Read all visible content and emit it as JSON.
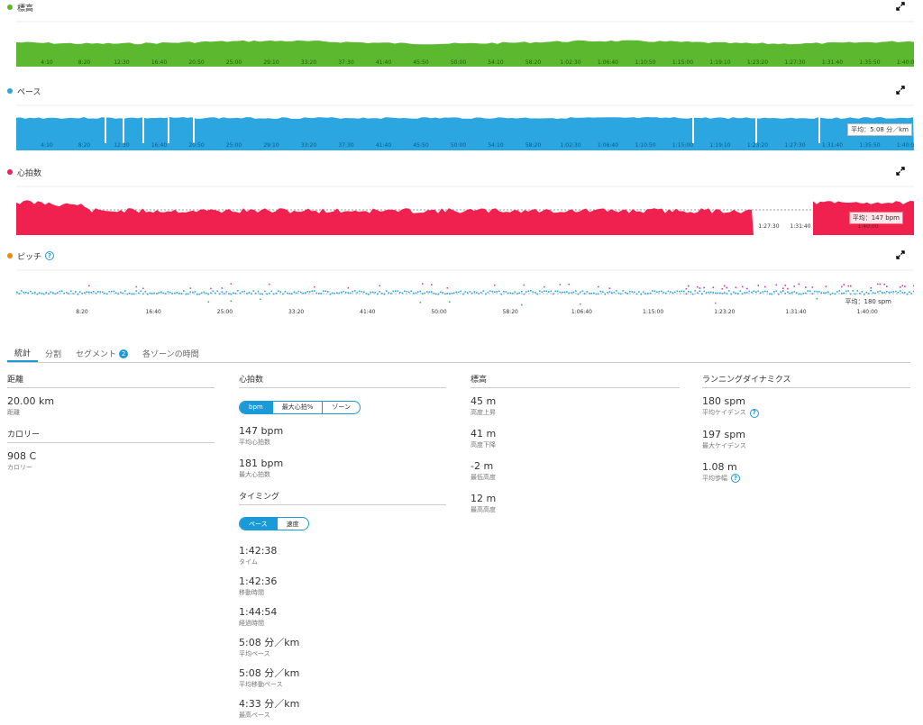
{
  "elevation": {
    "title": "標高",
    "color": "#5cb82e"
  },
  "pace": {
    "title": "ペース",
    "color": "#2ca6e0",
    "avg_label": "平均：5:08 分／km"
  },
  "heartrate": {
    "title": "心拍数",
    "color": "#f0214f",
    "avg_label": "平均：147 bpm"
  },
  "cadence": {
    "title": "ピッチ",
    "color": "#f08a00",
    "avg_label": "平均：180 spm"
  },
  "x_ticks": [
    "4:10",
    "8:20",
    "12:30",
    "16:40",
    "20:50",
    "25:00",
    "29:10",
    "33:20",
    "37:30",
    "41:40",
    "45:50",
    "50:00",
    "54:10",
    "58:20",
    "1:02:30",
    "1:06:40",
    "1:10:50",
    "1:15:00",
    "1:19:10",
    "1:23:20",
    "1:27:30",
    "1:31:40",
    "1:35:50",
    "1:40:00"
  ],
  "hr_visible_ticks": [
    "1:27:30",
    "1:31:40",
    "1:40:00"
  ],
  "cadence_ticks": [
    "8:20",
    "16:40",
    "25:00",
    "33:20",
    "41:40",
    "50:00",
    "58:20",
    "1:06:40",
    "1:15:00",
    "1:23:20",
    "1:31:40",
    "1:40:00"
  ],
  "tabs": [
    {
      "label": "統計",
      "active": true
    },
    {
      "label": "分割"
    },
    {
      "label": "セグメント",
      "badge": "2"
    },
    {
      "label": "各ゾーンの時間"
    }
  ],
  "col1": {
    "distance": {
      "title": "距離",
      "value": "20.00 km",
      "label": "距離"
    },
    "calories": {
      "title": "カロリー",
      "value": "908 C",
      "label": "カロリー"
    }
  },
  "col2": {
    "hr_title": "心拍数",
    "hr_seg": [
      "bpm",
      "最大心拍%",
      "ゾーン"
    ],
    "avg_hr": {
      "value": "147 bpm",
      "label": "平均心拍数"
    },
    "max_hr": {
      "value": "181 bpm",
      "label": "最大心拍数"
    },
    "timing_title": "タイミング",
    "timing_seg": [
      "ペース",
      "速度"
    ],
    "timing": [
      {
        "value": "1:42:38",
        "label": "タイム"
      },
      {
        "value": "1:42:36",
        "label": "移動時間"
      },
      {
        "value": "1:44:54",
        "label": "経過時間"
      },
      {
        "value": "5:08 分／km",
        "label": "平均ペース"
      },
      {
        "value": "5:08 分／km",
        "label": "平均移動ペース"
      },
      {
        "value": "4:33 分／km",
        "label": "最高ペース"
      }
    ]
  },
  "col3": {
    "title": "標高",
    "items": [
      {
        "value": "45 m",
        "label": "高度上昇"
      },
      {
        "value": "41 m",
        "label": "高度下降"
      },
      {
        "value": "-2 m",
        "label": "最低高度"
      },
      {
        "value": "12 m",
        "label": "最高高度"
      }
    ]
  },
  "col4": {
    "title": "ランニングダイナミクス",
    "items": [
      {
        "value": "180 spm",
        "label": "平均ケイデンス"
      },
      {
        "value": "197 spm",
        "label": "最大ケイデンス"
      },
      {
        "value": "1.08 m",
        "label": "平均歩幅"
      }
    ]
  }
}
